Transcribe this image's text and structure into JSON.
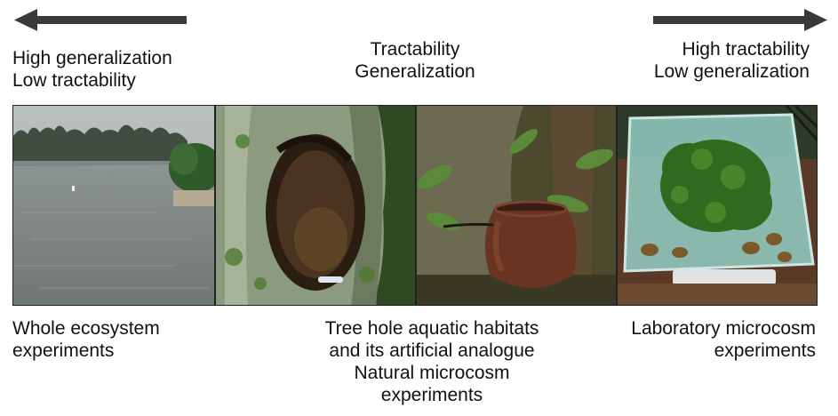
{
  "top_left": {
    "line1": "High generalization",
    "line2": "Low tractability"
  },
  "top_center": {
    "line1": "Tractability",
    "line2": "Generalization"
  },
  "top_right": {
    "line1": "High tractability",
    "line2": "Low generalization"
  },
  "bottom_left": {
    "line1": "Whole ecosystem",
    "line2": "experiments"
  },
  "bottom_center": {
    "line1": "Tree hole aquatic habitats",
    "line2": "and its artificial analogue",
    "line3": "Natural microcosm",
    "line4": "experiments"
  },
  "bottom_right": {
    "line1": "Laboratory microcosm",
    "line2": "experiments"
  },
  "arrows": {
    "color": "#3a3a3a"
  }
}
